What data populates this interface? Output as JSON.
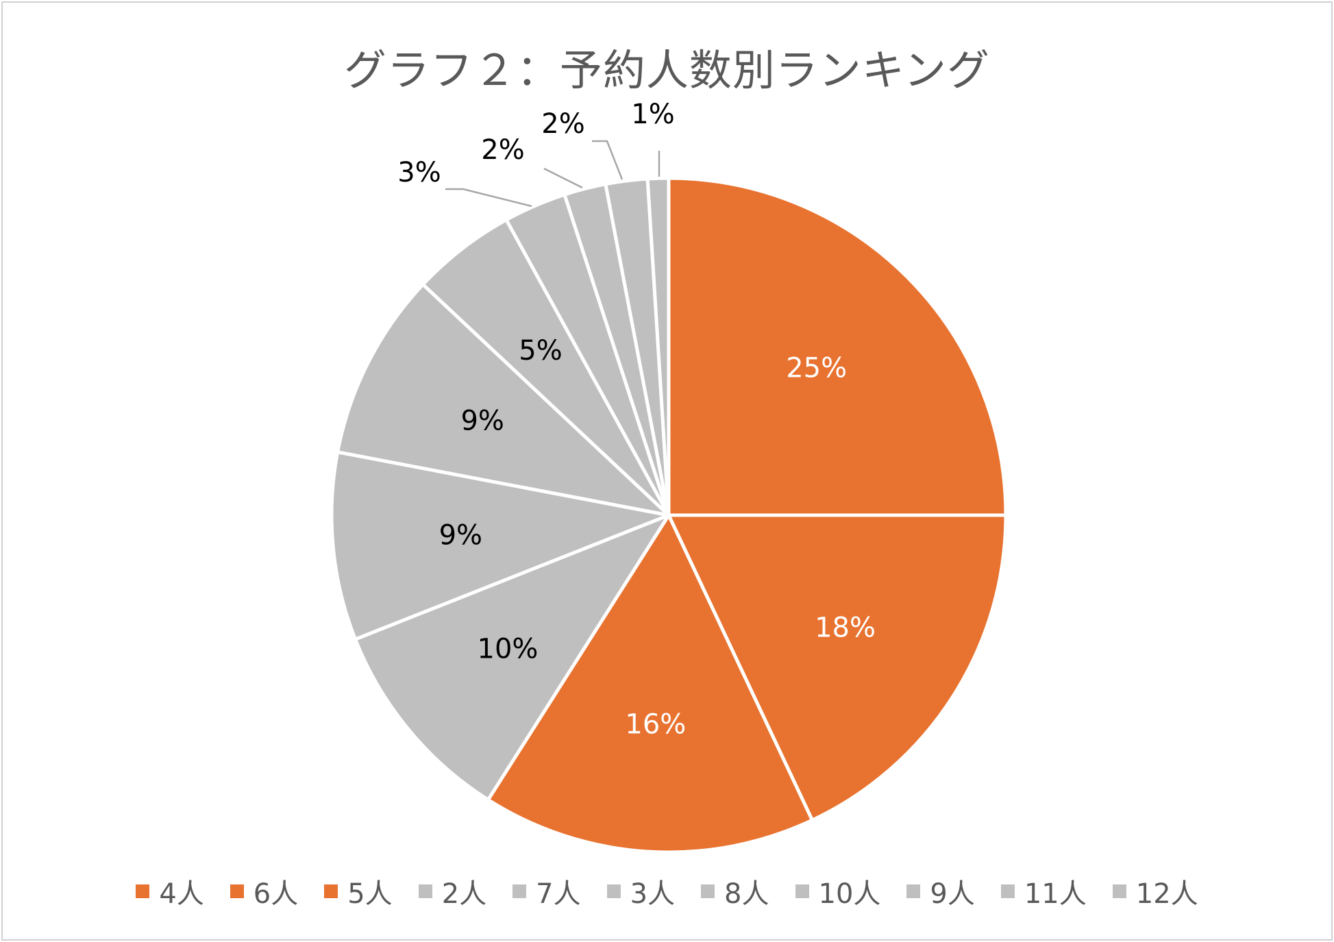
{
  "chart_data": {
    "type": "pie",
    "title": "グラフ２：予約人数別ランキング",
    "categories": [
      "4人",
      "6人",
      "5人",
      "2人",
      "7人",
      "3人",
      "8人",
      "10人",
      "9人",
      "11人",
      "12人"
    ],
    "values": [
      25,
      18,
      16,
      10,
      9,
      9,
      5,
      3,
      2,
      2,
      1
    ],
    "labels": [
      "25%",
      "18%",
      "16%",
      "10%",
      "9%",
      "9%",
      "5%",
      "3%",
      "2%",
      "2%",
      "1%"
    ],
    "colors": [
      "#e8722f",
      "#e8722f",
      "#e8722f",
      "#bfbfbf",
      "#bfbfbf",
      "#bfbfbf",
      "#bfbfbf",
      "#bfbfbf",
      "#bfbfbf",
      "#bfbfbf",
      "#bfbfbf"
    ],
    "label_colors": [
      "#ffffff",
      "#ffffff",
      "#ffffff",
      "#000000",
      "#000000",
      "#000000",
      "#000000",
      "#000000",
      "#000000",
      "#000000",
      "#000000"
    ],
    "legend_position": "bottom",
    "start_angle": "12 o'clock",
    "direction": "clockwise"
  }
}
